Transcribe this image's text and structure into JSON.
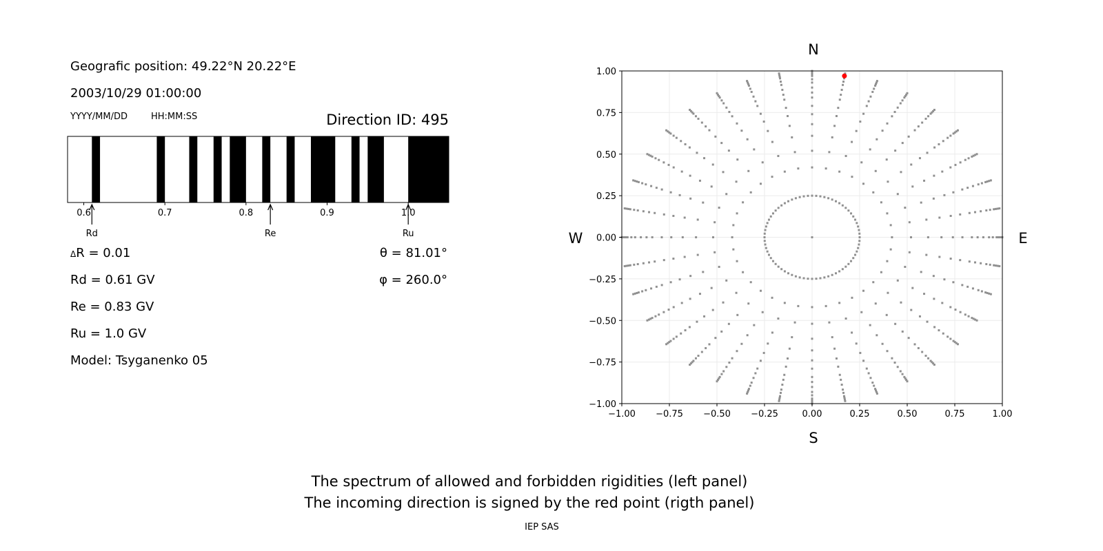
{
  "info": {
    "position": "Geografic position: 49.22°N 20.22°E",
    "datetime": "2003/10/29 01:00:00",
    "date_format": "YYYY/MM/DD",
    "time_format": "HH:MM:SS",
    "direction_id": "Direction ID: 495",
    "delta_r_symbol": "Δ",
    "delta_r": "R = 0.01",
    "rd": "Rd = 0.61 GV",
    "re": "Re = 0.83 GV",
    "ru": "Ru = 1.0 GV",
    "model": "Model: Tsyganenko 05",
    "theta": "θ = 81.01°",
    "phi": "φ = 260.0°"
  },
  "captions": {
    "line1": "The spectrum of allowed and forbidden rigidities (left panel)",
    "line2": "The incoming direction is signed by the red point (rigth panel)",
    "credit": "IEP SAS"
  },
  "chart_data": [
    {
      "type": "bar",
      "description_kind": "rigidity spectrum",
      "xlim": [
        0.58,
        1.05
      ],
      "xticks": [
        "0.6",
        "0.7",
        "0.8",
        "0.9",
        "1.0"
      ],
      "xtick_values": [
        0.6,
        0.7,
        0.8,
        0.9,
        1.0
      ],
      "black_bands": [
        [
          0.61,
          0.62
        ],
        [
          0.69,
          0.7
        ],
        [
          0.73,
          0.74
        ],
        [
          0.76,
          0.77
        ],
        [
          0.78,
          0.8
        ],
        [
          0.82,
          0.83
        ],
        [
          0.85,
          0.86
        ],
        [
          0.88,
          0.91
        ],
        [
          0.93,
          0.94
        ],
        [
          0.95,
          0.97
        ],
        [
          1.0,
          1.05
        ]
      ],
      "markers": [
        {
          "label": "Rd",
          "value": 0.61
        },
        {
          "label": "Re",
          "value": 0.83
        },
        {
          "label": "Ru",
          "value": 1.0
        }
      ],
      "colors": {
        "forbidden": "#000000",
        "allowed": "#ffffff"
      }
    },
    {
      "type": "scatter",
      "xlim": [
        -1,
        1
      ],
      "ylim": [
        -1,
        1
      ],
      "xticks": [
        "−1.00",
        "−0.75",
        "−0.50",
        "−0.25",
        "0.00",
        "0.25",
        "0.50",
        "0.75",
        "1.00"
      ],
      "yticks": [
        "−1.00",
        "−0.75",
        "−0.50",
        "−0.25",
        "0.00",
        "0.25",
        "0.50",
        "0.75",
        "1.00"
      ],
      "tick_values": [
        -1,
        -0.75,
        -0.5,
        -0.25,
        0,
        0.25,
        0.5,
        0.75,
        1
      ],
      "grid": true,
      "compass": {
        "north": "N",
        "south": "S",
        "west": "W",
        "east": "E"
      },
      "spoke_azimuth_step_deg": 10,
      "spoke_radii": [
        0.42,
        0.52,
        0.61,
        0.68,
        0.74,
        0.79,
        0.84,
        0.87,
        0.9,
        0.93,
        0.95,
        0.97,
        0.98,
        0.99,
        1.0
      ],
      "inner_ring_radius": 0.25,
      "center_point": [
        0,
        0
      ],
      "highlight_point": [
        0.17,
        0.97
      ],
      "colors": {
        "points": "#909090",
        "highlight": "#ff0000",
        "grid": "#ebebeb"
      }
    }
  ]
}
